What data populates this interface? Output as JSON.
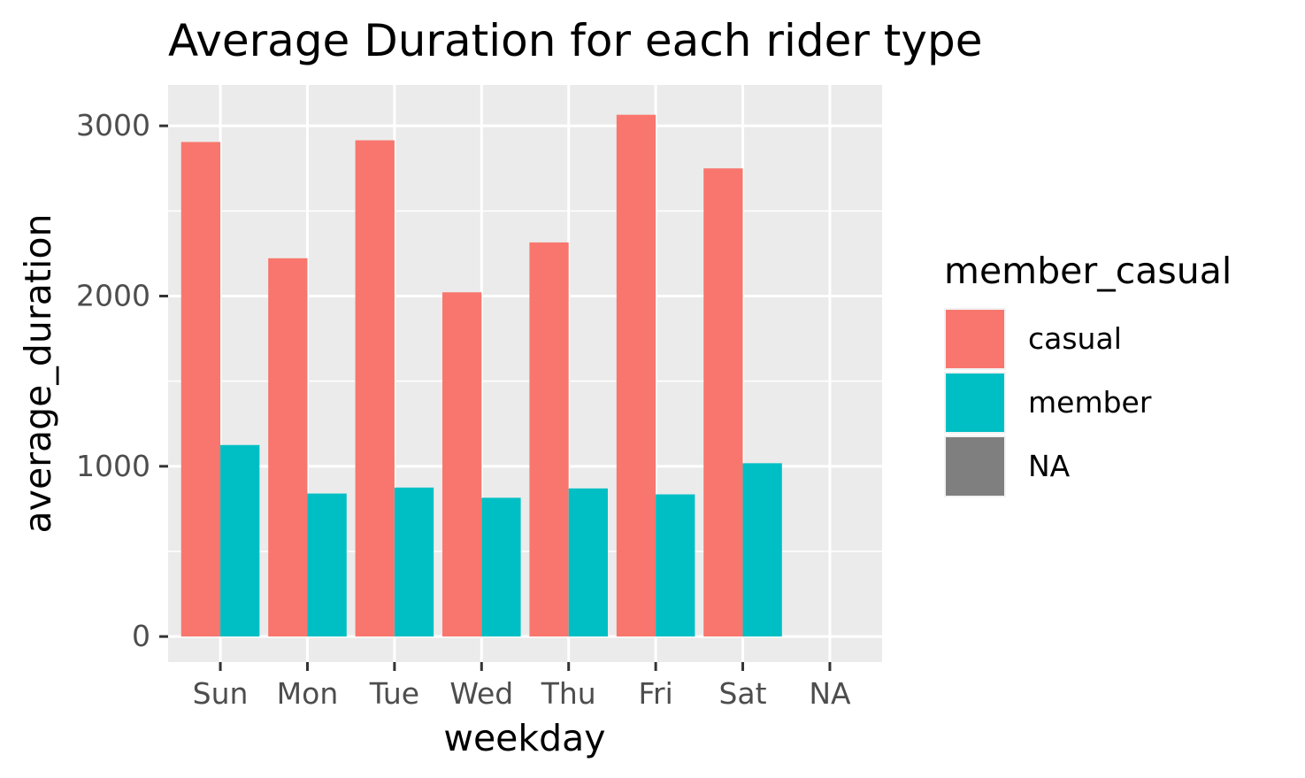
{
  "chart_data": {
    "type": "bar",
    "title": "Average Duration for each rider type",
    "xlabel": "weekday",
    "ylabel": "average_duration",
    "categories": [
      "Sun",
      "Mon",
      "Tue",
      "Wed",
      "Thu",
      "Fri",
      "Sat",
      "NA"
    ],
    "series": [
      {
        "name": "casual",
        "color": "#F8766D",
        "values": [
          2905,
          2222,
          2915,
          2022,
          2315,
          3065,
          2750,
          null
        ]
      },
      {
        "name": "member",
        "color": "#00BFC4",
        "values": [
          1125,
          840,
          875,
          815,
          870,
          835,
          1018,
          null
        ]
      }
    ],
    "ylim": [
      -150,
      3240
    ],
    "yticks": [
      0,
      1000,
      2000,
      3000
    ],
    "ytick_labels": [
      "0",
      "1000",
      "2000",
      "3000"
    ],
    "grid": true,
    "legend": {
      "title": "member_casual",
      "position": "right",
      "items": [
        {
          "label": "casual",
          "color": "#F8766D"
        },
        {
          "label": "member",
          "color": "#00BFC4"
        },
        {
          "label": "NA",
          "color": "#7F7F7F"
        }
      ]
    }
  }
}
